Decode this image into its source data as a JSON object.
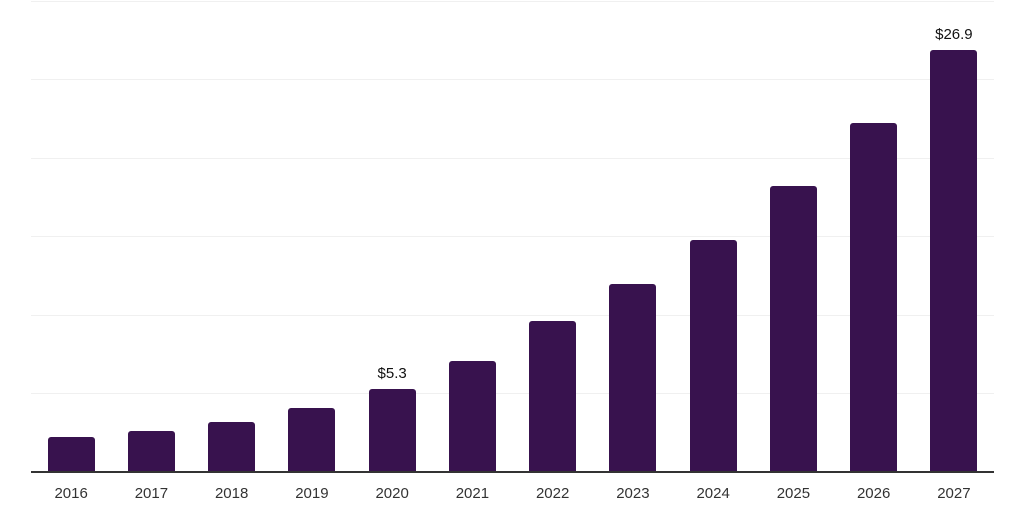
{
  "chart_data": {
    "type": "bar",
    "title": "",
    "xlabel": "",
    "ylabel": "",
    "categories": [
      "2016",
      "2017",
      "2018",
      "2019",
      "2020",
      "2021",
      "2022",
      "2023",
      "2024",
      "2025",
      "2026",
      "2027"
    ],
    "values": [
      2.2,
      2.6,
      3.2,
      4.1,
      5.3,
      7.1,
      9.6,
      12.0,
      14.8,
      18.2,
      22.2,
      26.9
    ],
    "data_labels": {
      "2020": "$5.3",
      "2027": "$26.9"
    },
    "ylim": [
      0,
      30
    ],
    "gridline_values": [
      5,
      10,
      15,
      20,
      25,
      30
    ],
    "grid": "horizontal",
    "legend_position": "none",
    "colors": {
      "bar": "#38124e",
      "axis": "#333333",
      "gridline": "#f0f0f0",
      "tick_label": "#333333",
      "data_label": "#111111",
      "background": "#ffffff"
    }
  }
}
